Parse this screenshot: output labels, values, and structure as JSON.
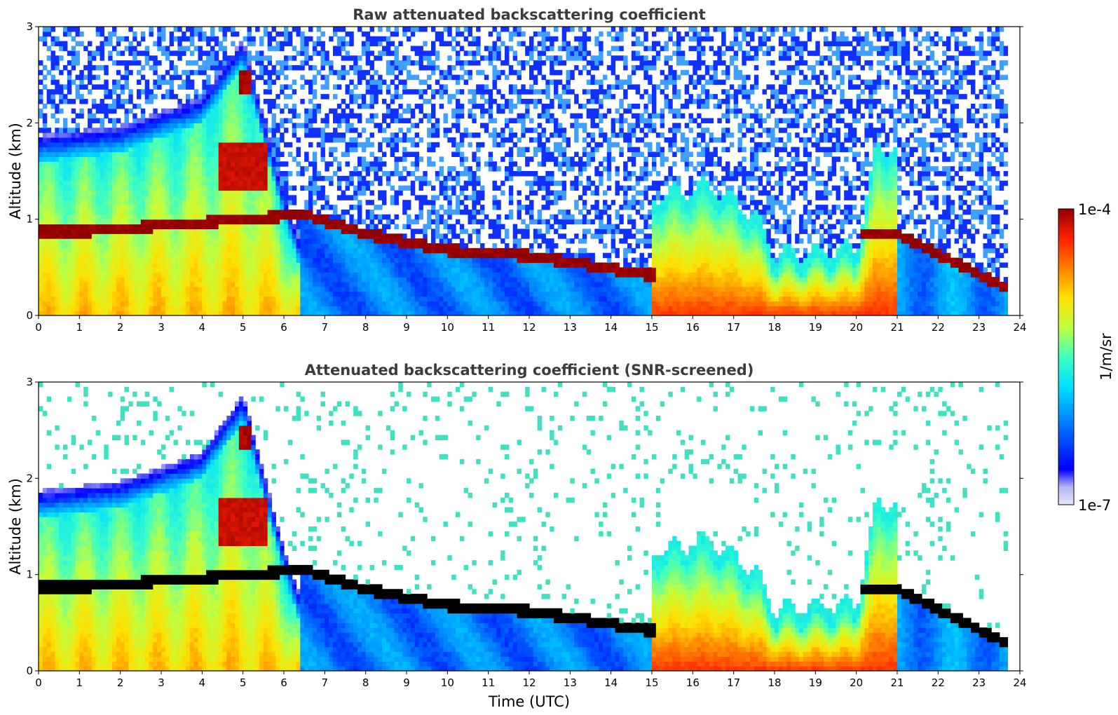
{
  "chart_data": [
    {
      "type": "heatmap",
      "title": "Raw attenuated backscattering coefficient",
      "xlabel": "",
      "ylabel": "Altitude (km)",
      "xlim": [
        0,
        24
      ],
      "ylim": [
        0,
        3
      ],
      "xticks": [
        "0",
        "1",
        "2",
        "3",
        "4",
        "5",
        "6",
        "7",
        "8",
        "9",
        "10",
        "11",
        "12",
        "13",
        "14",
        "15",
        "16",
        "17",
        "18",
        "19",
        "20",
        "21",
        "22",
        "23",
        "24"
      ],
      "yticks": [
        "0",
        "1",
        "2",
        "3"
      ],
      "screened": false,
      "features": {
        "aerosol_layer": [
          {
            "t": 0,
            "top": 1.6
          },
          {
            "t": 2,
            "top": 1.7
          },
          {
            "t": 4,
            "top": 2.0
          },
          {
            "t": 5,
            "top": 2.6
          },
          {
            "t": 6,
            "top": 1.0
          },
          {
            "t": 6.4,
            "top": 0.5
          }
        ],
        "stratocumulus_deck": [
          {
            "t": 0,
            "h": 0.88
          },
          {
            "t": 1.3,
            "h": 0.88
          },
          {
            "t": 6.5,
            "h": 1.05
          },
          {
            "t": 8,
            "h": 0.85
          },
          {
            "t": 10,
            "h": 0.68
          },
          {
            "t": 12,
            "h": 0.62
          },
          {
            "t": 13.5,
            "h": 0.52
          },
          {
            "t": 15,
            "h": 0.42
          },
          {
            "t": 20.2,
            "h": 0.85
          },
          {
            "t": 21,
            "h": 0.85
          },
          {
            "t": 23.7,
            "h": 0.28
          }
        ],
        "convective_plumes": [
          {
            "t": 15.1,
            "top": 1.1
          },
          {
            "t": 16.5,
            "top": 1.2
          },
          {
            "t": 17.5,
            "top": 0.9
          },
          {
            "t": 18,
            "top": 0.5
          },
          {
            "t": 20,
            "top": 0.55
          },
          {
            "t": 20.5,
            "top": 1.6
          }
        ]
      }
    },
    {
      "type": "heatmap",
      "title": "Attenuated backscattering coefficient (SNR-screened)",
      "xlabel": "Time (UTC)",
      "ylabel": "Altitude (km)",
      "xlim": [
        0,
        24
      ],
      "ylim": [
        0,
        3
      ],
      "xticks": [
        "0",
        "1",
        "2",
        "3",
        "4",
        "5",
        "6",
        "7",
        "8",
        "9",
        "10",
        "11",
        "12",
        "13",
        "14",
        "15",
        "16",
        "17",
        "18",
        "19",
        "20",
        "21",
        "22",
        "23",
        "24"
      ],
      "yticks": [
        "0",
        "1",
        "2",
        "3"
      ],
      "screened": true
    }
  ],
  "colorbar": {
    "label": "1/m/sr",
    "max_label": "1e-4",
    "min_label": "1e-7",
    "scale": "log",
    "range": [
      1e-07,
      0.0001
    ],
    "colormap": [
      "#e8e8f8",
      "#b4b4f4",
      "#0000ff",
      "#0080ff",
      "#00e0ff",
      "#40ffc0",
      "#c0ff40",
      "#ffe000",
      "#ff8000",
      "#ff2000",
      "#900000"
    ]
  }
}
